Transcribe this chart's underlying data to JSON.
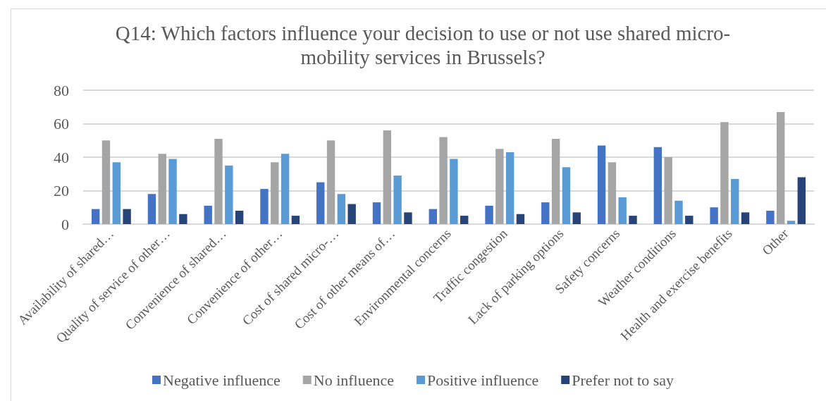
{
  "chart_data": {
    "type": "bar",
    "title": "Q14: Which factors influence your decision to use or not use shared micro-mobility services in Brussels?",
    "categories": [
      "Availability of shared…",
      "Quality of service of other…",
      "Convenience of shared…",
      "Convenience of other…",
      "Cost of shared micro-…",
      "Cost of other means of…",
      "Environmental concerns",
      "Traffic congestion",
      "Lack of parking options",
      "Safety concerns",
      "Weather conditions",
      "Health and exercise benefits",
      "Other"
    ],
    "series": [
      {
        "name": "Negative influence",
        "color": "#4472c4",
        "values": [
          9,
          18,
          11,
          21,
          25,
          13,
          9,
          11,
          13,
          47,
          46,
          10,
          8
        ]
      },
      {
        "name": "No influence",
        "color": "#a5a5a5",
        "values": [
          50,
          42,
          51,
          37,
          50,
          56,
          52,
          45,
          51,
          37,
          40,
          61,
          67
        ]
      },
      {
        "name": "Positive influence",
        "color": "#5b9bd5",
        "values": [
          37,
          39,
          35,
          42,
          18,
          29,
          39,
          43,
          34,
          16,
          14,
          27,
          2
        ]
      },
      {
        "name": "Prefer not to say",
        "color": "#264478",
        "values": [
          9,
          6,
          8,
          5,
          12,
          7,
          5,
          6,
          7,
          5,
          5,
          7,
          28
        ]
      }
    ],
    "ylim": [
      0,
      80
    ],
    "yticks": [
      0,
      20,
      40,
      60,
      80
    ],
    "grid": "y",
    "legend": "bottom"
  }
}
